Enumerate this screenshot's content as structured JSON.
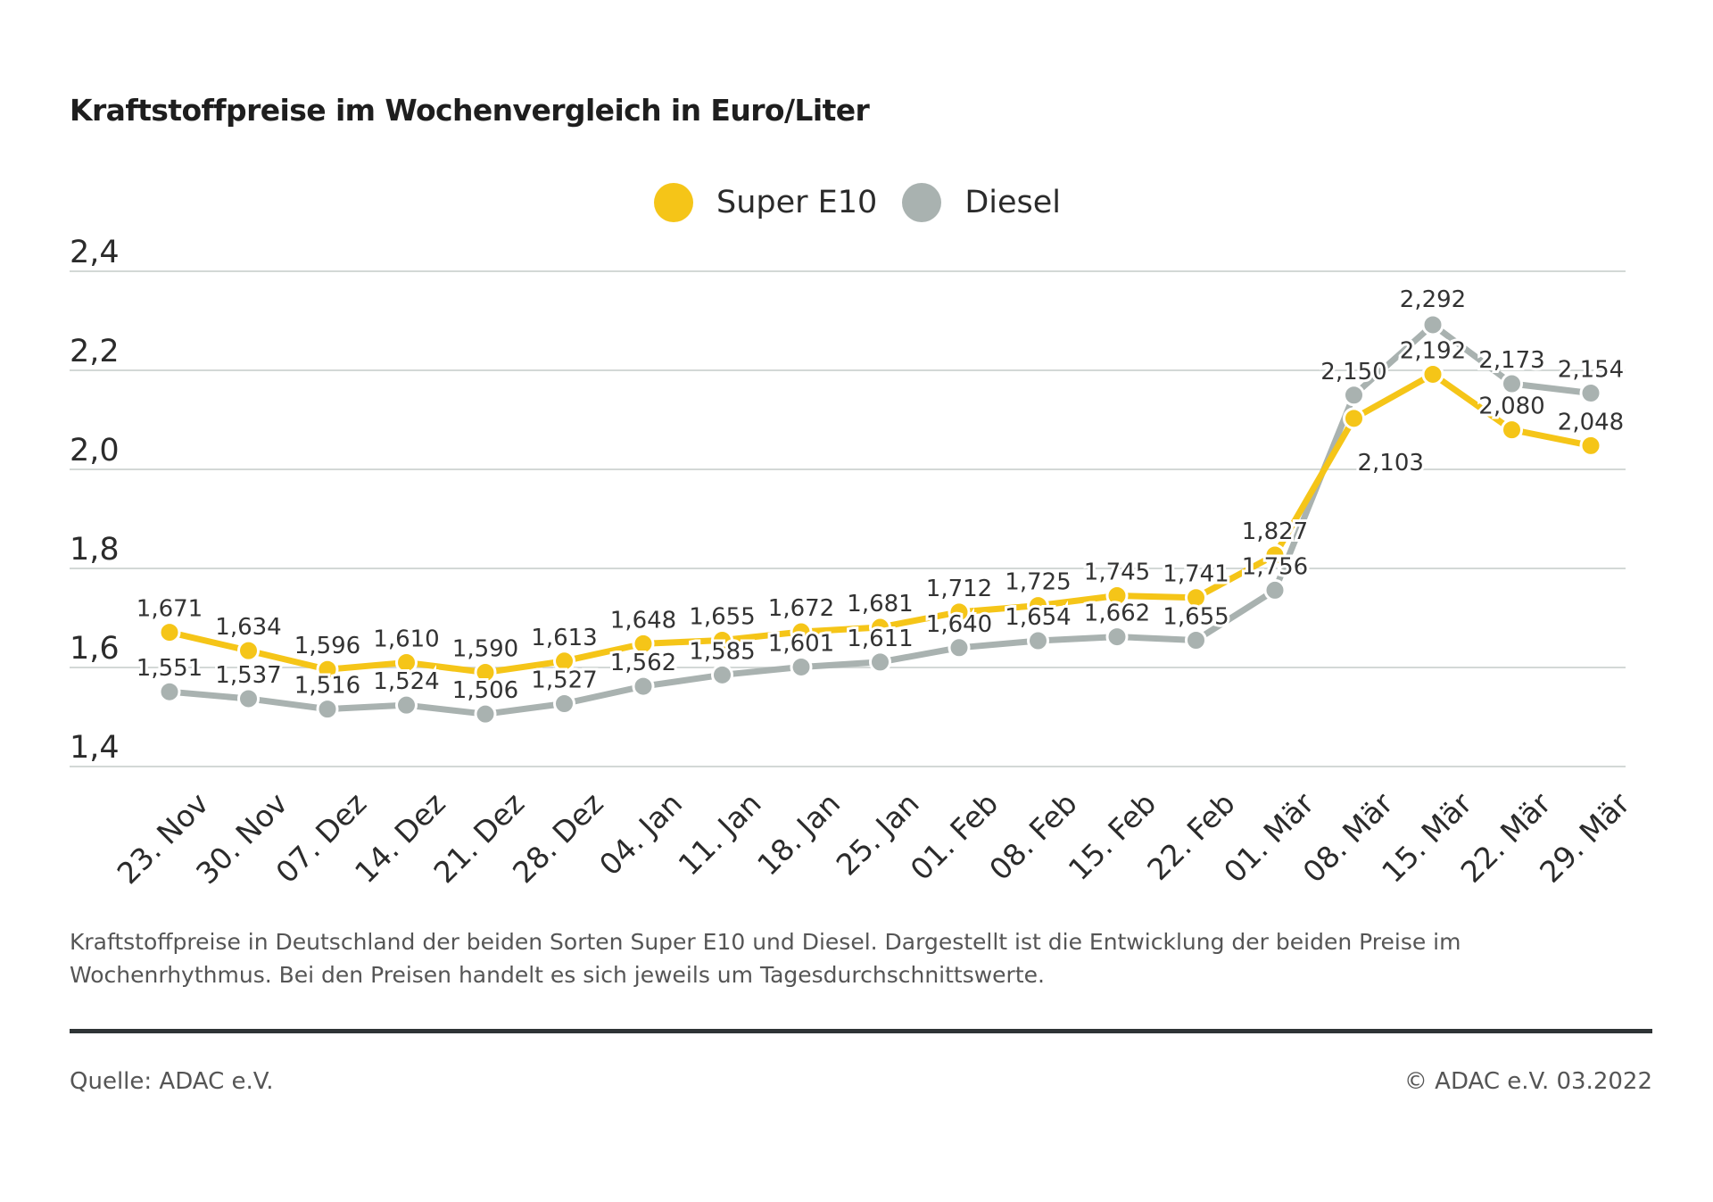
{
  "title": "Kraftstoffpreise im Wochenvergleich in Euro/Liter",
  "legend": [
    {
      "label": "Super E10",
      "color": "#f5c518"
    },
    {
      "label": "Diesel",
      "color": "#a9b2b0"
    }
  ],
  "footnote": "Kraftstoffpreise in Deutschland der beiden Sorten Super E10 und Diesel. Dargestellt ist die Entwicklung der beiden Preise im Wochenrhythmus. Bei den Preisen handelt es sich jeweils um Tagesdurchschnittswerte.",
  "source": "Quelle: ADAC e.V.",
  "copyright": "© ADAC e.V. 03.2022",
  "chart_data": {
    "type": "line",
    "title": "Kraftstoffpreise im Wochenvergleich in Euro/Liter",
    "xlabel": "",
    "ylabel": "",
    "categories": [
      "23. Nov",
      "30. Nov",
      "07. Dez",
      "14. Dez",
      "21. Dez",
      "28. Dez",
      "04. Jan",
      "11. Jan",
      "18. Jan",
      "25. Jan",
      "01. Feb",
      "08. Feb",
      "15. Feb",
      "22. Feb",
      "01. Mär",
      "08. Mär",
      "15. Mär",
      "22. Mär",
      "29. Mär"
    ],
    "ylim": [
      1.4,
      2.4
    ],
    "yticks": [
      1.4,
      1.6,
      1.8,
      2.0,
      2.2,
      2.4
    ],
    "ytick_labels": [
      "1,4",
      "1,6",
      "1,8",
      "2,0",
      "2,2",
      "2,4"
    ],
    "grid": true,
    "legend_position": "top-center",
    "series": [
      {
        "name": "Super E10",
        "color": "#f5c518",
        "values": [
          1.671,
          1.634,
          1.596,
          1.61,
          1.59,
          1.613,
          1.648,
          1.655,
          1.672,
          1.681,
          1.712,
          1.725,
          1.745,
          1.741,
          1.827,
          2.103,
          2.192,
          2.08,
          2.048
        ],
        "labels": [
          "1,671",
          "1,634",
          "1,596",
          "1,610",
          "1,590",
          "1,613",
          "1,648",
          "1,655",
          "1,672",
          "1,681",
          "1,712",
          "1,725",
          "1,745",
          "1,741",
          "1,827",
          "2,103",
          "2,192",
          "2,080",
          "2,048"
        ]
      },
      {
        "name": "Diesel",
        "color": "#a9b2b0",
        "values": [
          1.551,
          1.537,
          1.516,
          1.524,
          1.506,
          1.527,
          1.562,
          1.585,
          1.601,
          1.611,
          1.64,
          1.654,
          1.662,
          1.655,
          1.756,
          2.15,
          2.292,
          2.173,
          2.154
        ],
        "labels": [
          "1,551",
          "1,537",
          "1,516",
          "1,524",
          "1,506",
          "1,527",
          "1,562",
          "1,585",
          "1,601",
          "1,611",
          "1,640",
          "1,654",
          "1,662",
          "1,655",
          "1,756",
          "2,150",
          "2,292",
          "2,173",
          "2,154"
        ]
      }
    ]
  }
}
